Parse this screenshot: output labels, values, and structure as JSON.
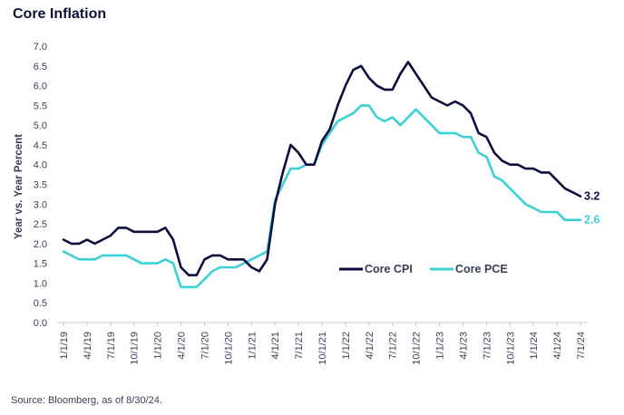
{
  "title": "Core Inflation",
  "source": "Source: Bloomberg, as of 8/30/24.",
  "colors": {
    "cpi": "#0d0e3d",
    "pce": "#3dd0d6"
  },
  "chart_data": {
    "type": "line",
    "title": "Core Inflation",
    "xlabel": "",
    "ylabel": "Year vs. Year Percent",
    "ylim": [
      0,
      7
    ],
    "yticks": [
      "7.0",
      "6.5",
      "6.0",
      "5.5",
      "5.0",
      "4.5",
      "4.0",
      "3.5",
      "3.0",
      "2.5",
      "2.0",
      "1.5",
      "1.0",
      "0.5",
      "0.0"
    ],
    "x_tick_labels": [
      "1/1/19",
      "4/1/19",
      "7/1/19",
      "10/1/19",
      "1/1/20",
      "4/1/20",
      "7/1/20",
      "10/1/20",
      "1/1/21",
      "4/1/21",
      "7/1/21",
      "10/1/21",
      "1/1/22",
      "4/1/22",
      "7/1/22",
      "10/1/22",
      "1/1/23",
      "4/1/23",
      "7/1/23",
      "10/1/23",
      "1/1/24",
      "4/1/24",
      "7/1/24"
    ],
    "x": [
      "2019-01",
      "2019-02",
      "2019-03",
      "2019-04",
      "2019-05",
      "2019-06",
      "2019-07",
      "2019-08",
      "2019-09",
      "2019-10",
      "2019-11",
      "2019-12",
      "2020-01",
      "2020-02",
      "2020-03",
      "2020-04",
      "2020-05",
      "2020-06",
      "2020-07",
      "2020-08",
      "2020-09",
      "2020-10",
      "2020-11",
      "2020-12",
      "2021-01",
      "2021-02",
      "2021-03",
      "2021-04",
      "2021-05",
      "2021-06",
      "2021-07",
      "2021-08",
      "2021-09",
      "2021-10",
      "2021-11",
      "2021-12",
      "2022-01",
      "2022-02",
      "2022-03",
      "2022-04",
      "2022-05",
      "2022-06",
      "2022-07",
      "2022-08",
      "2022-09",
      "2022-10",
      "2022-11",
      "2022-12",
      "2023-01",
      "2023-02",
      "2023-03",
      "2023-04",
      "2023-05",
      "2023-06",
      "2023-07",
      "2023-08",
      "2023-09",
      "2023-10",
      "2023-11",
      "2023-12",
      "2024-01",
      "2024-02",
      "2024-03",
      "2024-04",
      "2024-05",
      "2024-06",
      "2024-07"
    ],
    "series": [
      {
        "name": "Core CPI",
        "values": [
          2.1,
          2.0,
          2.0,
          2.1,
          2.0,
          2.1,
          2.2,
          2.4,
          2.4,
          2.3,
          2.3,
          2.3,
          2.3,
          2.4,
          2.1,
          1.4,
          1.2,
          1.2,
          1.6,
          1.7,
          1.7,
          1.6,
          1.6,
          1.6,
          1.4,
          1.3,
          1.6,
          3.0,
          3.8,
          4.5,
          4.3,
          4.0,
          4.0,
          4.6,
          4.9,
          5.5,
          6.0,
          6.4,
          6.5,
          6.2,
          6.0,
          5.9,
          5.9,
          6.3,
          6.6,
          6.3,
          6.0,
          5.7,
          5.6,
          5.5,
          5.6,
          5.5,
          5.3,
          4.8,
          4.7,
          4.3,
          4.1,
          4.0,
          4.0,
          3.9,
          3.9,
          3.8,
          3.8,
          3.6,
          3.4,
          3.3,
          3.2
        ]
      },
      {
        "name": "Core PCE",
        "values": [
          1.8,
          1.7,
          1.6,
          1.6,
          1.6,
          1.7,
          1.7,
          1.7,
          1.7,
          1.6,
          1.5,
          1.5,
          1.5,
          1.6,
          1.5,
          0.9,
          0.9,
          0.9,
          1.1,
          1.3,
          1.4,
          1.4,
          1.4,
          1.5,
          1.6,
          1.7,
          1.8,
          3.1,
          3.5,
          3.9,
          3.9,
          4.0,
          4.0,
          4.5,
          4.8,
          5.1,
          5.2,
          5.3,
          5.5,
          5.5,
          5.2,
          5.1,
          5.2,
          5.0,
          5.2,
          5.4,
          5.2,
          5.0,
          4.8,
          4.8,
          4.8,
          4.7,
          4.7,
          4.3,
          4.2,
          3.7,
          3.6,
          3.4,
          3.2,
          3.0,
          2.9,
          2.8,
          2.8,
          2.8,
          2.6,
          2.6,
          2.6
        ]
      }
    ],
    "end_labels": [
      "3.2",
      "2.6"
    ],
    "legend": [
      "Core CPI",
      "Core PCE"
    ],
    "legend_position": "center-right",
    "grid": false
  }
}
